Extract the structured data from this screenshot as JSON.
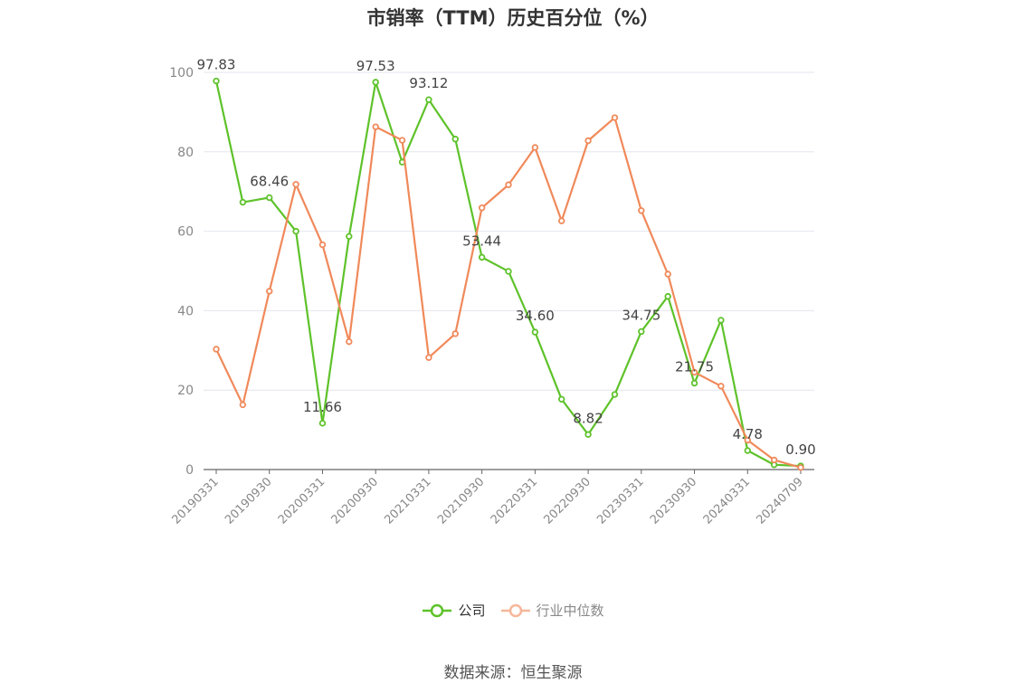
{
  "chart_data": {
    "type": "line",
    "title": "市销率（TTM）历史百分位（%）",
    "xlabel": "",
    "ylabel": "",
    "ylim": [
      0,
      100
    ],
    "yticks": [
      0,
      20,
      40,
      60,
      80,
      100
    ],
    "x": [
      "20190331",
      "20190630",
      "20190930",
      "20191231",
      "20200331",
      "20200630",
      "20200930",
      "20201231",
      "20210331",
      "20210630",
      "20210930",
      "20211231",
      "20220331",
      "20220630",
      "20220930",
      "20221231",
      "20230331",
      "20230630",
      "20230930",
      "20231231",
      "20240331",
      "20240630",
      "20240709"
    ],
    "xticks": [
      "20190331",
      "20190930",
      "20200331",
      "20200930",
      "20210331",
      "20210930",
      "20220331",
      "20220930",
      "20230331",
      "20230930",
      "20240331",
      "20240709"
    ],
    "grid": true,
    "legend_position": "bottom",
    "series": [
      {
        "name": "公司",
        "color": "#5ec22a",
        "values": [
          97.83,
          67.3,
          68.46,
          60.0,
          11.66,
          58.7,
          97.53,
          77.4,
          93.12,
          83.2,
          53.44,
          49.9,
          34.6,
          17.7,
          8.82,
          18.9,
          34.75,
          43.6,
          21.75,
          37.6,
          4.78,
          1.2,
          0.9
        ],
        "labels": [
          "97.83",
          "",
          "68.46",
          "",
          "11.66",
          "",
          "97.53",
          "",
          "93.12",
          "",
          "53.44",
          "",
          "34.60",
          "",
          "8.82",
          "",
          "34.75",
          "",
          "21.75",
          "",
          "4.78",
          "",
          "0.90"
        ]
      },
      {
        "name": "行业中位数",
        "color": "#f0895a",
        "values": [
          30.3,
          16.3,
          44.9,
          71.8,
          56.6,
          32.2,
          86.3,
          82.9,
          28.2,
          34.2,
          65.9,
          71.7,
          81.1,
          62.6,
          82.8,
          88.6,
          65.2,
          49.2,
          24.5,
          21.0,
          7.4,
          2.4,
          0.5
        ],
        "labels": []
      }
    ]
  },
  "source": "数据来源：恒生聚源"
}
